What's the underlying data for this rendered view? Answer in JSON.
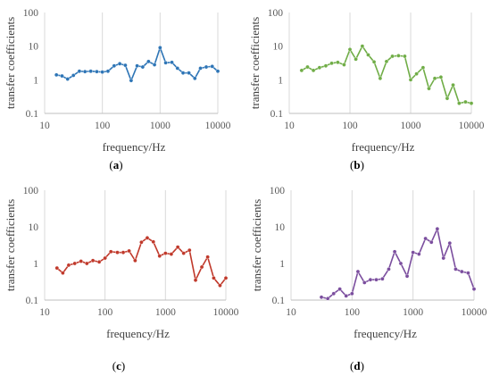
{
  "chart_data": [
    {
      "panel": "(a)",
      "panel_letter": "a",
      "type": "line",
      "xlabel": "frequency/Hz",
      "ylabel": "transfer coefficients",
      "xscale": "log",
      "yscale": "log",
      "xlim": [
        10,
        10000
      ],
      "ylim": [
        0.1,
        100
      ],
      "xticks": [
        "10",
        "100",
        "1000",
        "10000"
      ],
      "yticks": [
        "0.1",
        "1",
        "10",
        "100"
      ],
      "grid": "vertical",
      "color": "#2e75b6",
      "x": [
        16,
        20,
        25,
        31.5,
        40,
        50,
        63,
        80,
        100,
        125,
        160,
        200,
        250,
        315,
        400,
        500,
        630,
        800,
        1000,
        1250,
        1600,
        2000,
        2500,
        3150,
        4000,
        5000,
        6300,
        8000,
        10000
      ],
      "y": [
        1.4,
        1.3,
        1.05,
        1.35,
        1.8,
        1.75,
        1.8,
        1.75,
        1.7,
        1.8,
        2.6,
        3.0,
        2.7,
        0.95,
        2.6,
        2.4,
        3.5,
        2.8,
        9.0,
        3.2,
        3.3,
        2.2,
        1.6,
        1.6,
        1.1,
        2.2,
        2.4,
        2.5,
        1.8
      ]
    },
    {
      "panel": "(b)",
      "panel_letter": "b",
      "type": "line",
      "xlabel": "frequency/Hz",
      "ylabel": "transfer coefficients",
      "xscale": "log",
      "yscale": "log",
      "xlim": [
        10,
        10000
      ],
      "ylim": [
        0.1,
        100
      ],
      "xticks": [
        "10",
        "100",
        "1000",
        "10000"
      ],
      "yticks": [
        "0.1",
        "1",
        "10",
        "100"
      ],
      "grid": "vertical",
      "color": "#70ad47",
      "x": [
        16,
        20,
        25,
        31.5,
        40,
        50,
        63,
        80,
        100,
        125,
        160,
        200,
        250,
        315,
        400,
        500,
        630,
        800,
        1000,
        1250,
        1600,
        2000,
        2500,
        3150,
        4000,
        5000,
        6300,
        8000,
        10000
      ],
      "y": [
        1.9,
        2.4,
        1.9,
        2.3,
        2.6,
        3.1,
        3.3,
        2.8,
        8.0,
        4.1,
        10.0,
        5.5,
        3.4,
        1.1,
        3.5,
        5.0,
        5.2,
        5.0,
        1.0,
        1.5,
        2.3,
        0.55,
        1.1,
        1.2,
        0.28,
        0.7,
        0.2,
        0.22,
        0.2
      ]
    },
    {
      "panel": "(c)",
      "panel_letter": "c",
      "type": "line",
      "xlabel": "frequency/Hz",
      "ylabel": "transfer coefficients",
      "xscale": "log",
      "yscale": "log",
      "xlim": [
        10,
        10000
      ],
      "ylim": [
        0.1,
        100
      ],
      "xticks": [
        "10",
        "100",
        "1000",
        "10000"
      ],
      "yticks": [
        "0.1",
        "1",
        "10",
        "100"
      ],
      "grid": "vertical",
      "color": "#c0392b",
      "x": [
        16,
        20,
        25,
        31.5,
        40,
        50,
        63,
        80,
        100,
        125,
        160,
        200,
        250,
        315,
        400,
        500,
        630,
        800,
        1000,
        1250,
        1600,
        2000,
        2500,
        3150,
        4000,
        5000,
        6300,
        8000,
        10000
      ],
      "y": [
        0.75,
        0.55,
        0.9,
        1.0,
        1.15,
        1.0,
        1.2,
        1.1,
        1.4,
        2.1,
        2.0,
        2.0,
        2.2,
        1.2,
        3.8,
        5.0,
        3.9,
        1.6,
        1.9,
        1.8,
        2.8,
        1.9,
        2.3,
        0.35,
        0.8,
        1.5,
        0.4,
        0.25,
        0.4
      ]
    },
    {
      "panel": "(d)",
      "panel_letter": "d",
      "type": "line",
      "xlabel": "frequency/Hz",
      "ylabel": "transfer coefficients",
      "xscale": "log",
      "yscale": "log",
      "xlim": [
        10,
        10000
      ],
      "ylim": [
        0.1,
        100
      ],
      "xticks": [
        "10",
        "100",
        "1000",
        "10000"
      ],
      "yticks": [
        "0.1",
        "1",
        "10",
        "100"
      ],
      "grid": "vertical",
      "color": "#7b4e9e",
      "x": [
        31.5,
        40,
        50,
        63,
        80,
        100,
        125,
        160,
        200,
        250,
        315,
        400,
        500,
        630,
        800,
        1000,
        1250,
        1600,
        2000,
        2500,
        3150,
        4000,
        5000,
        6300,
        8000,
        10000
      ],
      "y": [
        0.12,
        0.11,
        0.15,
        0.2,
        0.13,
        0.15,
        0.6,
        0.3,
        0.36,
        0.36,
        0.38,
        0.7,
        2.1,
        1.0,
        0.45,
        2.0,
        1.8,
        4.8,
        3.8,
        8.8,
        1.4,
        3.6,
        0.7,
        0.6,
        0.55,
        0.2
      ]
    }
  ]
}
